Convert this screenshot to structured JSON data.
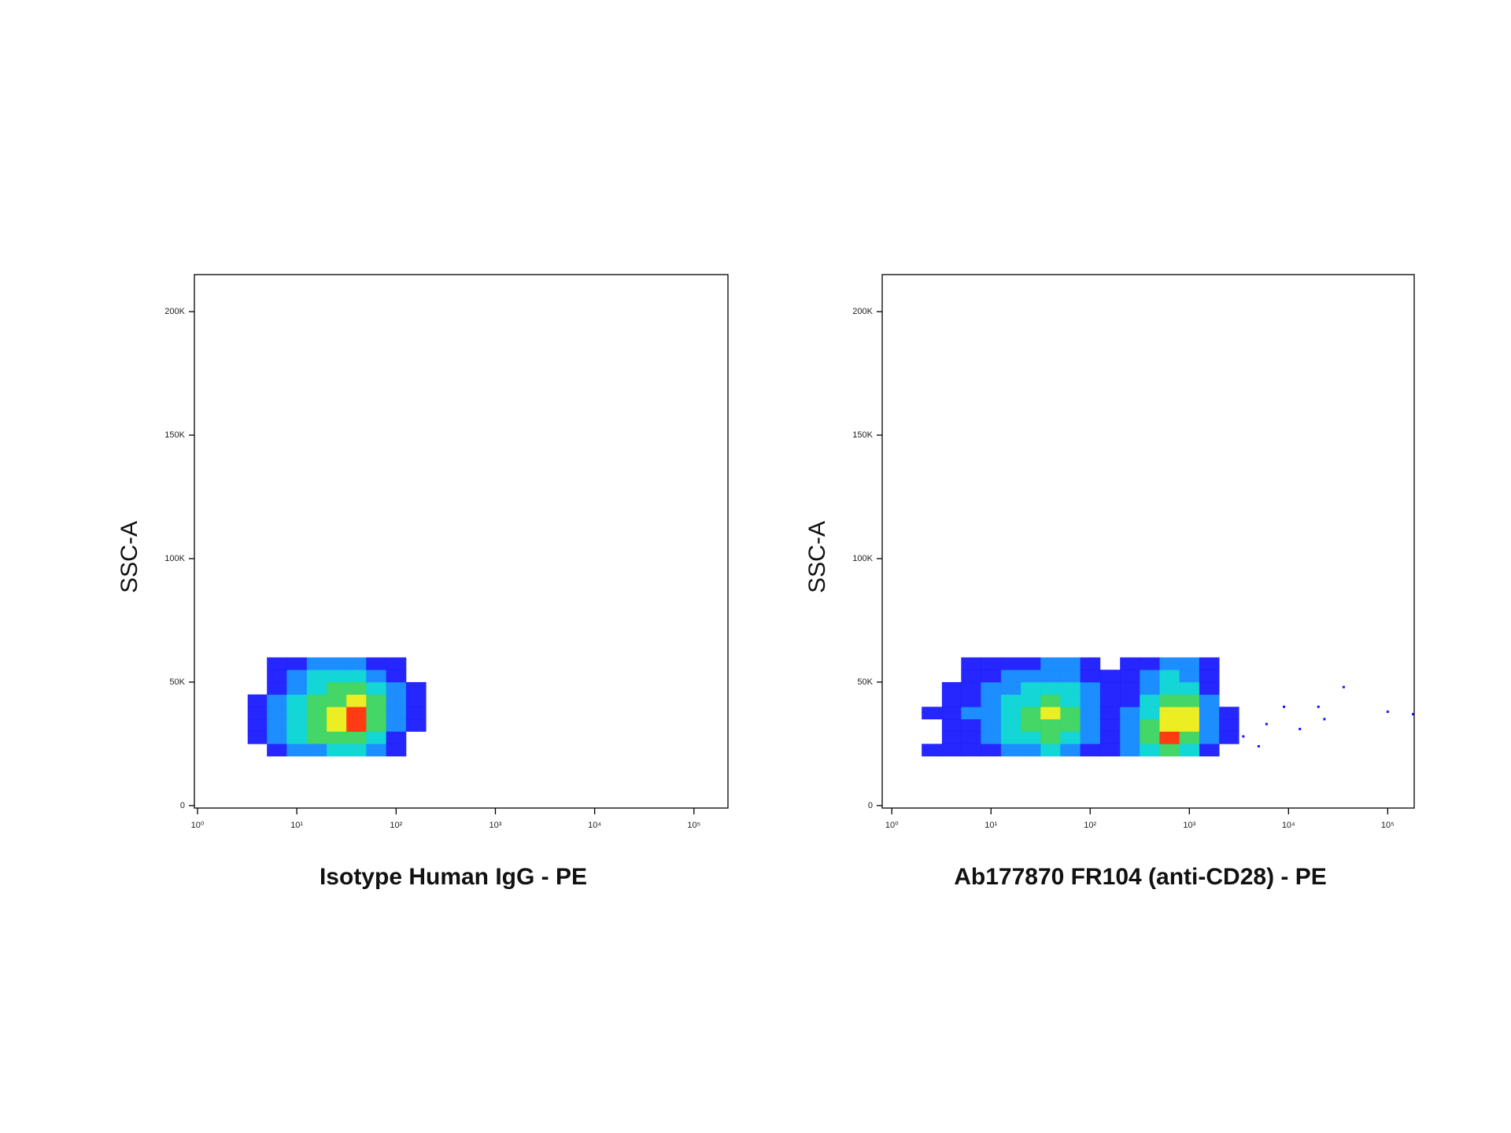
{
  "chart_data": [
    {
      "type": "density",
      "xlabel": "Isotype Human IgG - PE",
      "ylabel": "SSC-A",
      "xscale": "log",
      "xlim": [
        0.93,
        220000
      ],
      "ylim": [
        -1000,
        215000
      ],
      "xticks": [
        {
          "value": 1,
          "label": "10⁰"
        },
        {
          "value": 10,
          "label": "10¹"
        },
        {
          "value": 100,
          "label": "10²"
        },
        {
          "value": 1000,
          "label": "10³"
        },
        {
          "value": 10000,
          "label": "10⁴"
        },
        {
          "value": 100000,
          "label": "10⁵"
        }
      ],
      "yticks": [
        0,
        {
          "value": 50000,
          "label": "50K"
        },
        {
          "value": 100000,
          "label": "100K"
        },
        {
          "value": 150000,
          "label": "150K"
        },
        {
          "value": 200000,
          "label": "200K"
        }
      ],
      "colors": [
        "#1414ff",
        "#0a84ff",
        "#00d2d2",
        "#34d25a",
        "#ecec10",
        "#ff2a00"
      ],
      "xbins": [
        3.2,
        5,
        7.9,
        12.6,
        20,
        31.6,
        50,
        79.4,
        126,
        200
      ],
      "ybins": [
        20000,
        25000,
        30000,
        35000,
        40000,
        45000,
        50000,
        55000,
        60000
      ],
      "z": [
        [
          0,
          1,
          2,
          2,
          3,
          3,
          2,
          1,
          0
        ],
        [
          1,
          2,
          3,
          4,
          4,
          4,
          3,
          1,
          0
        ],
        [
          1,
          2,
          3,
          4,
          5,
          6,
          4,
          2,
          1
        ],
        [
          1,
          2,
          3,
          4,
          5,
          6,
          4,
          2,
          1
        ],
        [
          1,
          2,
          3,
          4,
          4,
          5,
          4,
          2,
          1
        ],
        [
          0,
          1,
          2,
          3,
          4,
          4,
          3,
          2,
          1
        ],
        [
          0,
          1,
          2,
          3,
          3,
          3,
          2,
          1,
          0
        ],
        [
          0,
          1,
          1,
          2,
          2,
          2,
          1,
          1,
          0
        ]
      ]
    },
    {
      "type": "density",
      "xlabel": "Ab177870 FR104 (anti-CD28) - PE",
      "ylabel": "SSC-A",
      "xscale": "log",
      "xlim": [
        0.8,
        185000
      ],
      "ylim": [
        -1000,
        215000
      ],
      "xticks": [
        {
          "value": 1,
          "label": "10⁰"
        },
        {
          "value": 10,
          "label": "10¹"
        },
        {
          "value": 100,
          "label": "10²"
        },
        {
          "value": 1000,
          "label": "10³"
        },
        {
          "value": 10000,
          "label": "10⁴"
        },
        {
          "value": 100000,
          "label": "10⁵"
        }
      ],
      "yticks": [
        0,
        {
          "value": 50000,
          "label": "50K"
        },
        {
          "value": 100000,
          "label": "100K"
        },
        {
          "value": 150000,
          "label": "150K"
        },
        {
          "value": 200000,
          "label": "200K"
        }
      ],
      "colors": [
        "#1414ff",
        "#0a84ff",
        "#00d2d2",
        "#34d25a",
        "#ecec10",
        "#ff2a00"
      ],
      "xbins": [
        2,
        3.2,
        5,
        7.9,
        12.6,
        20,
        31.6,
        50,
        79.4,
        126,
        200,
        316,
        501,
        794,
        1260,
        2000,
        3160
      ],
      "ybins": [
        20000,
        25000,
        30000,
        35000,
        40000,
        45000,
        50000,
        55000,
        60000
      ],
      "z": [
        [
          1,
          1,
          1,
          1,
          2,
          2,
          3,
          2,
          1,
          1,
          2,
          3,
          4,
          3,
          1,
          0
        ],
        [
          0,
          1,
          1,
          2,
          3,
          3,
          4,
          3,
          2,
          1,
          2,
          4,
          6,
          4,
          2,
          1
        ],
        [
          0,
          1,
          1,
          2,
          3,
          4,
          4,
          4,
          2,
          1,
          2,
          4,
          5,
          5,
          2,
          1
        ],
        [
          1,
          1,
          2,
          2,
          3,
          4,
          5,
          4,
          2,
          1,
          2,
          3,
          5,
          5,
          2,
          1
        ],
        [
          0,
          1,
          1,
          2,
          3,
          3,
          4,
          3,
          2,
          1,
          1,
          3,
          4,
          4,
          2,
          0
        ],
        [
          0,
          1,
          1,
          2,
          2,
          3,
          3,
          3,
          2,
          1,
          1,
          2,
          3,
          3,
          1,
          0
        ],
        [
          0,
          0,
          1,
          1,
          2,
          2,
          2,
          2,
          1,
          1,
          1,
          2,
          3,
          2,
          1,
          0
        ],
        [
          0,
          0,
          1,
          1,
          1,
          1,
          2,
          2,
          1,
          0,
          1,
          1,
          2,
          2,
          1,
          0
        ]
      ],
      "points": {
        "x": [
          3500,
          5000,
          6000,
          9000,
          13000,
          20000,
          23000,
          36000,
          100000,
          180000
        ],
        "y": [
          28000,
          24000,
          33000,
          40000,
          31000,
          40000,
          35000,
          48000,
          38000,
          37000
        ]
      }
    }
  ]
}
